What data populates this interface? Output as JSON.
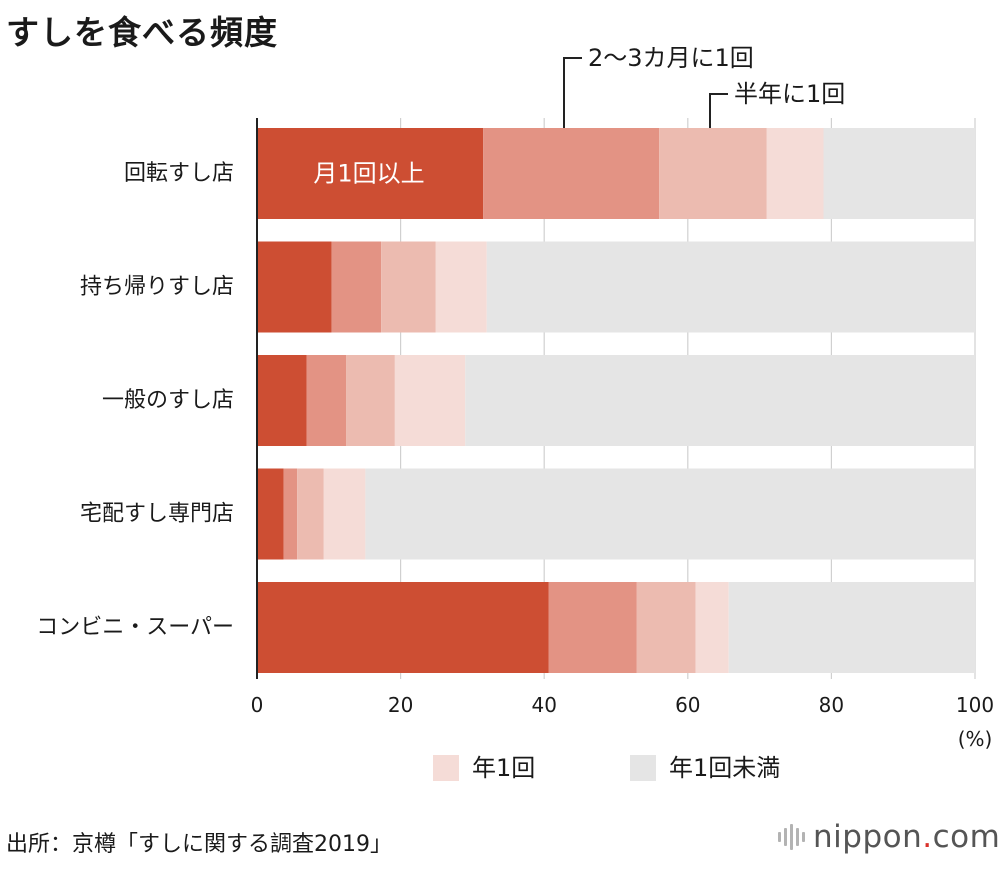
{
  "title": "すしを食べる頻度",
  "source": "出所：京樽「すしに関する調査2019」",
  "logo": {
    "name": "nippon",
    "dot": ".",
    "suffix": "com"
  },
  "colors": {
    "monthly": "#cd4e33",
    "bimonthly": "#e39384",
    "halfyear": "#ecbbb0",
    "yearly": "#f5dcd7",
    "less": "#e5e5e5",
    "axis": "#222222",
    "grid": "#d0d0d0"
  },
  "chart_data": {
    "type": "bar",
    "orientation": "horizontal",
    "stacked": true,
    "categories": [
      "回転すし店",
      "持ち帰りすし店",
      "一般のすし店",
      "宅配すし専門店",
      "コンビニ・スーパー"
    ],
    "series": [
      {
        "name": "月1回以上",
        "color_key": "monthly",
        "values": [
          31.5,
          10.4,
          6.9,
          3.7,
          40.6
        ]
      },
      {
        "name": "2〜3カ月に1回",
        "color_key": "bimonthly",
        "values": [
          24.5,
          6.9,
          5.5,
          1.9,
          12.3
        ]
      },
      {
        "name": "半年に1回",
        "color_key": "halfyear",
        "values": [
          15.0,
          7.6,
          6.8,
          3.7,
          8.2
        ]
      },
      {
        "name": "年1回",
        "color_key": "yearly",
        "values": [
          7.9,
          7.1,
          9.8,
          5.8,
          4.6
        ]
      },
      {
        "name": "年1回未満",
        "color_key": "less",
        "values": [
          21.1,
          68.0,
          71.0,
          84.9,
          34.3
        ]
      }
    ],
    "xlim": [
      0,
      100
    ],
    "x_ticks": [
      0,
      20,
      40,
      60,
      80,
      100
    ],
    "x_unit": "(%)",
    "grid": true,
    "legend_placement": "bottom",
    "legend_items": [
      "年1回",
      "年1回未満"
    ],
    "annotations": {
      "monthly_label": "月1回以上",
      "bimonthly_label": "2〜3カ月に1回",
      "halfyear_label": "半年に1回"
    }
  }
}
